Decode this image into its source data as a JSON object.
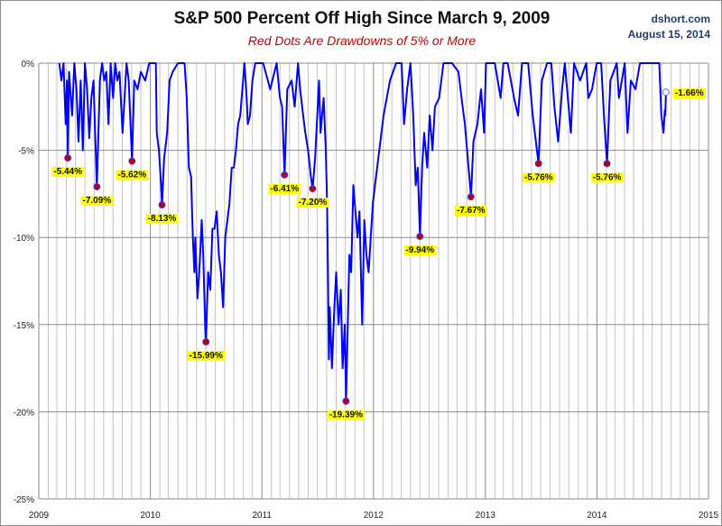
{
  "chart_data": {
    "type": "line",
    "title": "S&P 500 Percent Off High Since March 9, 2009",
    "subtitle": "Red Dots Are Drawdowns of 5% or More",
    "source": "dshort.com",
    "date": "August 15, 2014",
    "xlim": [
      "2009-01-01",
      "2015-01-01"
    ],
    "ylim": [
      -25,
      0
    ],
    "x_tick_labels": [
      "2009",
      "2010",
      "2011",
      "2012",
      "2013",
      "2014",
      "2015"
    ],
    "y_tick_values": [
      0,
      -5,
      -10,
      -15,
      -20,
      -25
    ],
    "y_tick_labels": [
      "0%",
      "-5%",
      "-10%",
      "-15%",
      "-20%",
      "-25%"
    ],
    "grid": {
      "horizontal": true,
      "vertical": "monthly"
    },
    "colors": {
      "line": "#0000ff",
      "drawdown_dot": "#c00000",
      "label_bg": "#ffff00",
      "current_dot": "#ffffff"
    },
    "series": [
      {
        "points": [
          [
            "2009-03-09",
            0
          ],
          [
            "2009-03-16",
            -1
          ],
          [
            "2009-03-23",
            0
          ],
          [
            "2009-03-30",
            -3.5
          ],
          [
            "2009-04-03",
            -1
          ],
          [
            "2009-04-06",
            -5.44
          ],
          [
            "2009-04-10",
            -0.5
          ],
          [
            "2009-04-20",
            -3
          ],
          [
            "2009-04-27",
            0
          ],
          [
            "2009-05-04",
            -1.5
          ],
          [
            "2009-05-11",
            -4.5
          ],
          [
            "2009-05-18",
            -1
          ],
          [
            "2009-05-25",
            -5
          ],
          [
            "2009-06-01",
            0
          ],
          [
            "2009-06-08",
            -1.5
          ],
          [
            "2009-06-15",
            -4.3
          ],
          [
            "2009-06-22",
            -2
          ],
          [
            "2009-06-29",
            -1
          ],
          [
            "2009-07-10",
            -7.09
          ],
          [
            "2009-07-20",
            -1
          ],
          [
            "2009-07-27",
            0
          ],
          [
            "2009-08-03",
            -1
          ],
          [
            "2009-08-10",
            -0.5
          ],
          [
            "2009-08-17",
            -3.5
          ],
          [
            "2009-08-24",
            0
          ],
          [
            "2009-09-01",
            -2
          ],
          [
            "2009-09-08",
            0
          ],
          [
            "2009-09-15",
            -1
          ],
          [
            "2009-09-22",
            -0.5
          ],
          [
            "2009-10-02",
            -4
          ],
          [
            "2009-10-15",
            0
          ],
          [
            "2009-10-22",
            -1
          ],
          [
            "2009-11-02",
            -5.62
          ],
          [
            "2009-11-09",
            -1
          ],
          [
            "2009-11-20",
            -1.5
          ],
          [
            "2009-12-01",
            -0.5
          ],
          [
            "2009-12-15",
            -1
          ],
          [
            "2009-12-28",
            0
          ],
          [
            "2010-01-08",
            0
          ],
          [
            "2010-01-19",
            0
          ],
          [
            "2010-01-22",
            -4
          ],
          [
            "2010-01-29",
            -5
          ],
          [
            "2010-02-05",
            -7
          ],
          [
            "2010-02-08",
            -8.13
          ],
          [
            "2010-02-15",
            -5.5
          ],
          [
            "2010-02-25",
            -4
          ],
          [
            "2010-03-05",
            -1
          ],
          [
            "2010-03-15",
            -0.5
          ],
          [
            "2010-04-01",
            0
          ],
          [
            "2010-04-15",
            0
          ],
          [
            "2010-04-23",
            0
          ],
          [
            "2010-04-30",
            -2
          ],
          [
            "2010-05-07",
            -6
          ],
          [
            "2010-05-14",
            -6.5
          ],
          [
            "2010-05-20",
            -10
          ],
          [
            "2010-05-25",
            -12
          ],
          [
            "2010-05-28",
            -10
          ],
          [
            "2010-06-04",
            -13.5
          ],
          [
            "2010-06-10",
            -12
          ],
          [
            "2010-06-18",
            -9
          ],
          [
            "2010-06-23",
            -11
          ],
          [
            "2010-06-30",
            -15.5
          ],
          [
            "2010-07-02",
            -15.99
          ],
          [
            "2010-07-09",
            -12
          ],
          [
            "2010-07-16",
            -13
          ],
          [
            "2010-07-23",
            -9.5
          ],
          [
            "2010-07-30",
            -9.5
          ],
          [
            "2010-08-06",
            -8.5
          ],
          [
            "2010-08-13",
            -11
          ],
          [
            "2010-08-20",
            -12
          ],
          [
            "2010-08-27",
            -14
          ],
          [
            "2010-09-03",
            -10
          ],
          [
            "2010-09-10",
            -9
          ],
          [
            "2010-09-17",
            -8
          ],
          [
            "2010-09-24",
            -6
          ],
          [
            "2010-10-01",
            -6
          ],
          [
            "2010-10-08",
            -5
          ],
          [
            "2010-10-15",
            -3.5
          ],
          [
            "2010-10-22",
            -3
          ],
          [
            "2010-11-05",
            0
          ],
          [
            "2010-11-12",
            -2
          ],
          [
            "2010-11-16",
            -3.5
          ],
          [
            "2010-11-23",
            -3
          ],
          [
            "2010-12-01",
            -1
          ],
          [
            "2010-12-10",
            0
          ],
          [
            "2011-01-05",
            0
          ],
          [
            "2011-01-28",
            -1.5
          ],
          [
            "2011-02-18",
            0
          ],
          [
            "2011-03-01",
            -2
          ],
          [
            "2011-03-08",
            -2.5
          ],
          [
            "2011-03-16",
            -6.41
          ],
          [
            "2011-03-25",
            -1.5
          ],
          [
            "2011-04-08",
            -1
          ],
          [
            "2011-04-18",
            -2.5
          ],
          [
            "2011-04-29",
            0
          ],
          [
            "2011-05-06",
            -1.5
          ],
          [
            "2011-05-16",
            -3
          ],
          [
            "2011-05-23",
            -4
          ],
          [
            "2011-06-01",
            -5
          ],
          [
            "2011-06-10",
            -6.5
          ],
          [
            "2011-06-16",
            -7.2
          ],
          [
            "2011-06-24",
            -5.5
          ],
          [
            "2011-07-07",
            -1
          ],
          [
            "2011-07-12",
            -4
          ],
          [
            "2011-07-22",
            -2
          ],
          [
            "2011-07-29",
            -5
          ],
          [
            "2011-08-02",
            -8
          ],
          [
            "2011-08-05",
            -12
          ],
          [
            "2011-08-08",
            -17
          ],
          [
            "2011-08-11",
            -14
          ],
          [
            "2011-08-18",
            -17.5
          ],
          [
            "2011-08-26",
            -14
          ],
          [
            "2011-09-01",
            -12
          ],
          [
            "2011-09-09",
            -15
          ],
          [
            "2011-09-16",
            -13
          ],
          [
            "2011-09-22",
            -17.5
          ],
          [
            "2011-09-29",
            -15
          ],
          [
            "2011-10-03",
            -19.39
          ],
          [
            "2011-10-14",
            -11
          ],
          [
            "2011-10-20",
            -12
          ],
          [
            "2011-10-27",
            -7
          ],
          [
            "2011-11-03",
            -8.5
          ],
          [
            "2011-11-10",
            -10
          ],
          [
            "2011-11-16",
            -8.5
          ],
          [
            "2011-11-25",
            -15
          ],
          [
            "2011-12-02",
            -9
          ],
          [
            "2011-12-09",
            -11
          ],
          [
            "2011-12-16",
            -12
          ],
          [
            "2011-12-30",
            -8
          ],
          [
            "2012-01-13",
            -6
          ],
          [
            "2012-02-03",
            -3
          ],
          [
            "2012-02-24",
            -1
          ],
          [
            "2012-03-15",
            0
          ],
          [
            "2012-04-02",
            0
          ],
          [
            "2012-04-10",
            -3.5
          ],
          [
            "2012-04-20",
            -1.5
          ],
          [
            "2012-05-01",
            0
          ],
          [
            "2012-05-10",
            -3
          ],
          [
            "2012-05-18",
            -7
          ],
          [
            "2012-05-25",
            -6
          ],
          [
            "2012-06-01",
            -9.94
          ],
          [
            "2012-06-08",
            -6
          ],
          [
            "2012-06-15",
            -4
          ],
          [
            "2012-06-25",
            -6
          ],
          [
            "2012-07-03",
            -3
          ],
          [
            "2012-07-12",
            -5
          ],
          [
            "2012-07-20",
            -2.5
          ],
          [
            "2012-08-03",
            -2
          ],
          [
            "2012-08-17",
            0
          ],
          [
            "2012-09-14",
            0
          ],
          [
            "2012-10-05",
            -0.5
          ],
          [
            "2012-10-15",
            -2
          ],
          [
            "2012-10-26",
            -3.5
          ],
          [
            "2012-11-07",
            -6
          ],
          [
            "2012-11-15",
            -7.67
          ],
          [
            "2012-11-23",
            -4.5
          ],
          [
            "2012-12-06",
            -3.5
          ],
          [
            "2012-12-18",
            -1.5
          ],
          [
            "2012-12-28",
            -4
          ],
          [
            "2013-01-03",
            0
          ],
          [
            "2013-02-01",
            0
          ],
          [
            "2013-02-20",
            -2
          ],
          [
            "2013-03-01",
            0
          ],
          [
            "2013-03-15",
            0
          ],
          [
            "2013-04-05",
            -2
          ],
          [
            "2013-04-18",
            -3
          ],
          [
            "2013-05-01",
            0
          ],
          [
            "2013-05-21",
            0
          ],
          [
            "2013-06-05",
            -3
          ],
          [
            "2013-06-24",
            -5.76
          ],
          [
            "2013-07-05",
            -1
          ],
          [
            "2013-07-22",
            0
          ],
          [
            "2013-08-05",
            0
          ],
          [
            "2013-08-15",
            -2.5
          ],
          [
            "2013-08-27",
            -4.5
          ],
          [
            "2013-09-09",
            -1.5
          ],
          [
            "2013-09-18",
            0
          ],
          [
            "2013-10-08",
            -4
          ],
          [
            "2013-10-18",
            0
          ],
          [
            "2013-11-07",
            -1
          ],
          [
            "2013-11-27",
            0
          ],
          [
            "2013-12-04",
            -2
          ],
          [
            "2013-12-16",
            -1.5
          ],
          [
            "2013-12-31",
            0
          ],
          [
            "2014-01-15",
            0
          ],
          [
            "2014-01-24",
            -3
          ],
          [
            "2014-02-03",
            -5.76
          ],
          [
            "2014-02-14",
            -1
          ],
          [
            "2014-03-07",
            0
          ],
          [
            "2014-03-14",
            -2
          ],
          [
            "2014-04-02",
            0
          ],
          [
            "2014-04-11",
            -4
          ],
          [
            "2014-04-22",
            -1
          ],
          [
            "2014-05-07",
            -1.5
          ],
          [
            "2014-05-22",
            0
          ],
          [
            "2014-06-10",
            0
          ],
          [
            "2014-07-03",
            0
          ],
          [
            "2014-07-24",
            0
          ],
          [
            "2014-07-31",
            -3
          ],
          [
            "2014-08-07",
            -4
          ],
          [
            "2014-08-11",
            -2.7
          ],
          [
            "2014-08-13",
            -3
          ],
          [
            "2014-08-15",
            -1.66
          ]
        ]
      }
    ],
    "annotations": [
      {
        "date": "2009-04-06",
        "value": -5.44,
        "label": "-5.44%",
        "marker": "red"
      },
      {
        "date": "2009-07-10",
        "value": -7.09,
        "label": "-7.09%",
        "marker": "red"
      },
      {
        "date": "2009-11-02",
        "value": -5.62,
        "label": "-5.62%",
        "marker": "red"
      },
      {
        "date": "2010-02-08",
        "value": -8.13,
        "label": "-8.13%",
        "marker": "red"
      },
      {
        "date": "2010-07-02",
        "value": -15.99,
        "label": "-15.99%",
        "marker": "red"
      },
      {
        "date": "2011-03-16",
        "value": -6.41,
        "label": "-6.41%",
        "marker": "red"
      },
      {
        "date": "2011-06-16",
        "value": -7.2,
        "label": "-7.20%",
        "marker": "red"
      },
      {
        "date": "2011-10-03",
        "value": -19.39,
        "label": "-19.39%",
        "marker": "red"
      },
      {
        "date": "2012-06-01",
        "value": -9.94,
        "label": "-9.94%",
        "marker": "red"
      },
      {
        "date": "2012-11-15",
        "value": -7.67,
        "label": "-7.67%",
        "marker": "red"
      },
      {
        "date": "2013-06-24",
        "value": -5.76,
        "label": "-5.76%",
        "marker": "red"
      },
      {
        "date": "2014-02-03",
        "value": -5.76,
        "label": "-5.76%",
        "marker": "red"
      },
      {
        "date": "2014-08-15",
        "value": -1.66,
        "label": "-1.66%",
        "marker": "open"
      }
    ]
  }
}
